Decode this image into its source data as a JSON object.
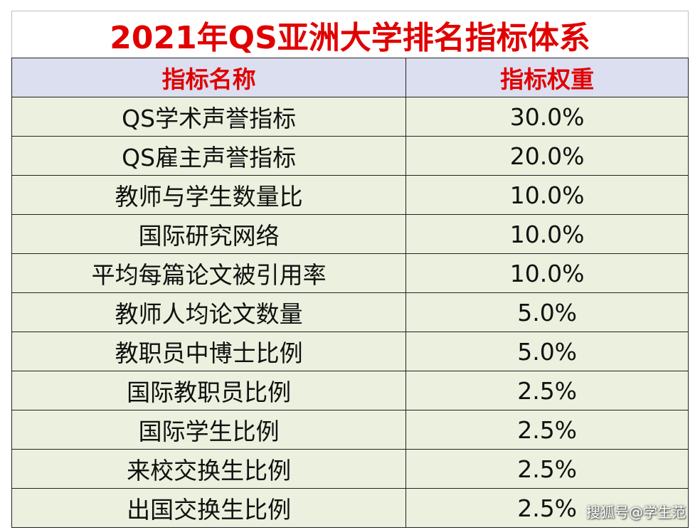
{
  "title": "2021年QS亚洲大学排名指标体系",
  "table": {
    "header": [
      "指标名称",
      "指标权重"
    ],
    "rows": [
      [
        "QS学术声誉指标",
        "30.0%"
      ],
      [
        "QS雇主声誉指标",
        "20.0%"
      ],
      [
        "教师与学生数量比",
        "10.0%"
      ],
      [
        "国际研究网络",
        "10.0%"
      ],
      [
        "平均每篇论文被引用率",
        "10.0%"
      ],
      [
        "教师人均论文数量",
        "5.0%"
      ],
      [
        "教职员中博士比例",
        "5.0%"
      ],
      [
        "国际教职员比例",
        "2.5%"
      ],
      [
        "国际学生比例",
        "2.5%"
      ],
      [
        "来校交换生比例",
        "2.5%"
      ],
      [
        "出国交换生比例",
        "2.5%"
      ]
    ]
  },
  "watermark": "搜狐号@学生范"
}
